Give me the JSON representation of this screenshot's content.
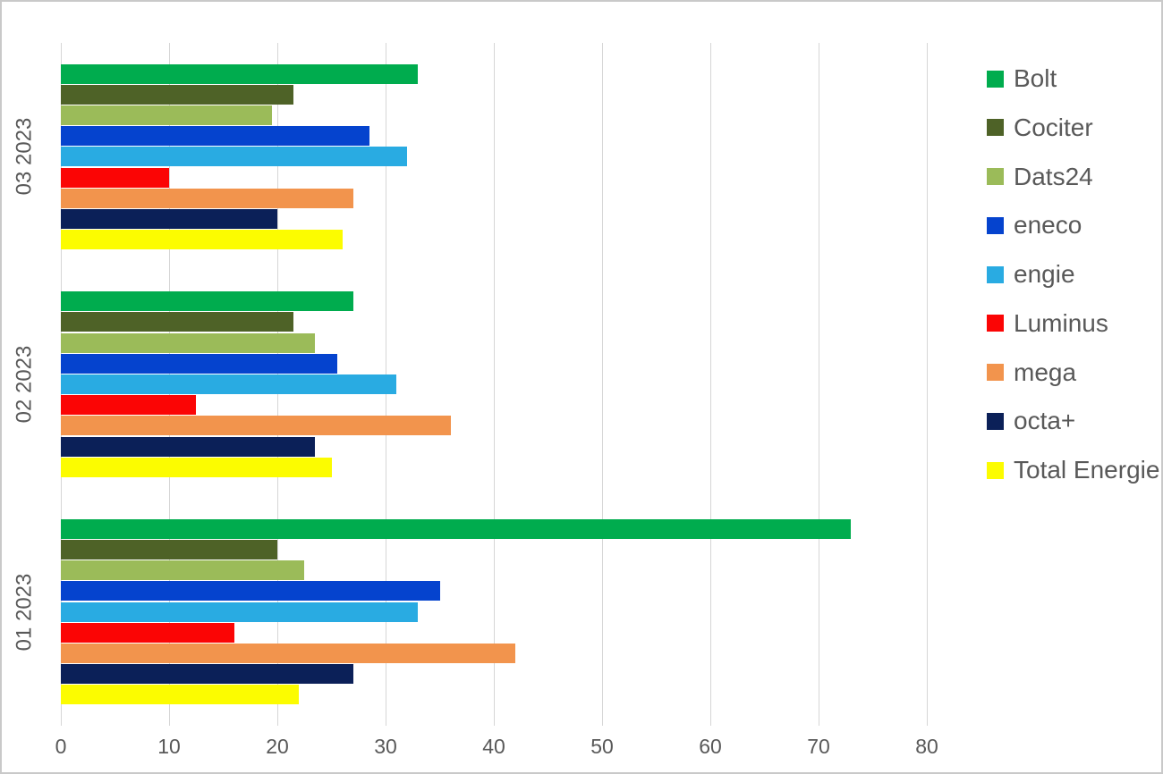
{
  "chart_data": {
    "type": "bar",
    "orientation": "horizontal",
    "title": "",
    "xlabel": "",
    "ylabel": "",
    "categories": [
      "03 2023",
      "02 2023",
      "01 2023"
    ],
    "series": [
      {
        "name": "Bolt",
        "color": "#00AC4E",
        "values": [
          33,
          27,
          73
        ]
      },
      {
        "name": "Cociter",
        "color": "#4E6227",
        "values": [
          21.5,
          21.5,
          20
        ]
      },
      {
        "name": "Dats24",
        "color": "#9BBB59",
        "values": [
          19.5,
          23.5,
          22.5
        ]
      },
      {
        "name": "eneco",
        "color": "#0543CE",
        "values": [
          28.5,
          25.5,
          35
        ]
      },
      {
        "name": "engie",
        "color": "#29ABE2",
        "values": [
          32,
          31,
          33
        ]
      },
      {
        "name": "Luminus",
        "color": "#FB0505",
        "values": [
          10,
          12.5,
          16
        ]
      },
      {
        "name": "mega",
        "color": "#F2944D",
        "values": [
          27,
          36,
          42
        ]
      },
      {
        "name": "octa+",
        "color": "#0B2058",
        "values": [
          20,
          23.5,
          27
        ]
      },
      {
        "name": "Total Energie",
        "color": "#FCFC00",
        "values": [
          26,
          25,
          22
        ]
      }
    ],
    "x_ticks": [
      0,
      10,
      20,
      30,
      40,
      50,
      60,
      70,
      80
    ],
    "xlim": [
      0,
      84
    ],
    "grid": "vertical-only",
    "legend_position": "right",
    "axis_text_color": "#595959",
    "gridline_color": "#D6D6D6",
    "background_color": "#FFFFFF",
    "border_color": "#C9C9C9"
  }
}
